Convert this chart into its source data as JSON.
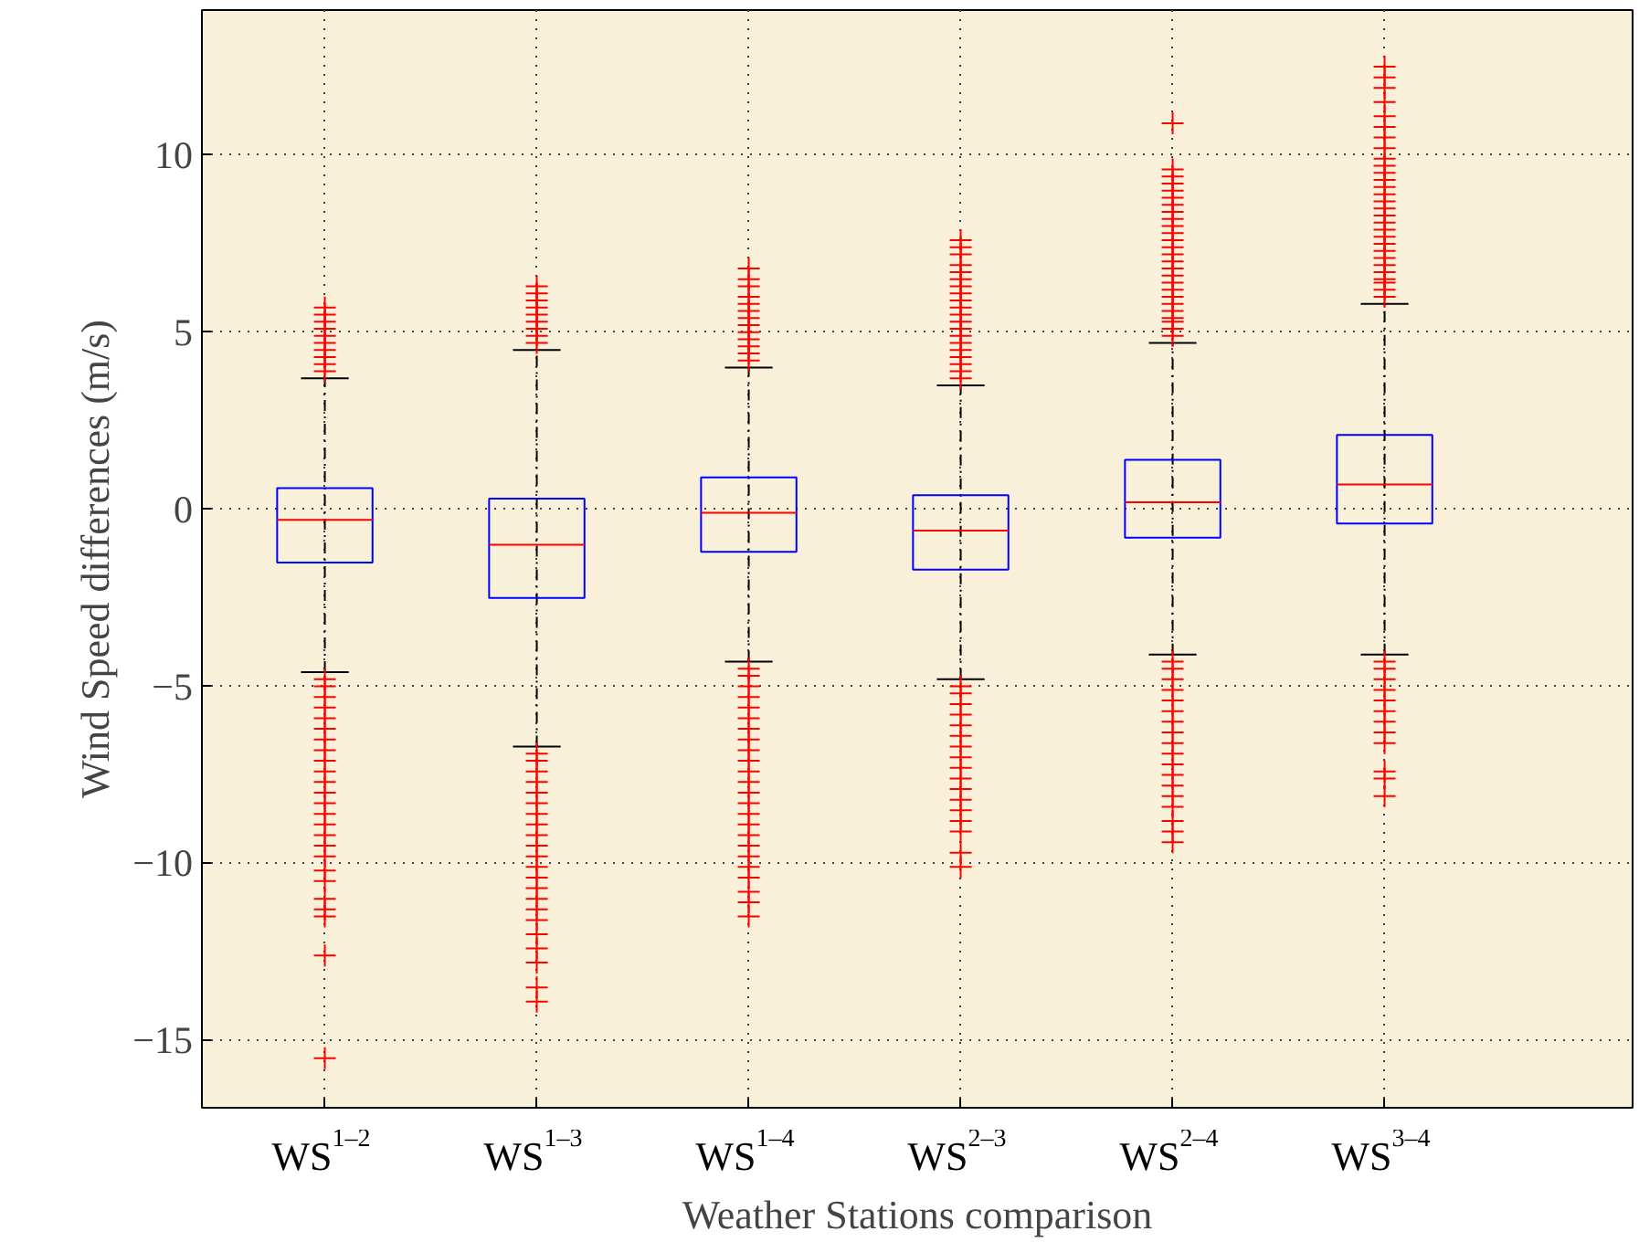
{
  "chart_data": {
    "type": "box",
    "xlabel": "Weather Stations comparison",
    "ylabel": "Wind Speed differences (m/s)",
    "categories": [
      "WS$^{1–2}$",
      "WS$^{1–3}$",
      "WS$^{1–4}$",
      "WS$^{2–3}$",
      "WS$^{2–4}$",
      "WS$^{3–4}$"
    ],
    "ylim": [
      -16.9,
      14.1
    ],
    "yticks": [
      {
        "value": -15,
        "label": "−15"
      },
      {
        "value": -10,
        "label": "−10"
      },
      {
        "value": -5,
        "label": "−5"
      },
      0,
      5,
      10
    ],
    "grid": true,
    "marker": "cross",
    "series": [
      {
        "color": "#0000ff",
        "boxes": [
          {
            "low": -4.6,
            "q1": -1.5,
            "median": -0.3,
            "q3": 0.6,
            "high": 3.7,
            "outliers": [
              3.9,
              4.1,
              4.3,
              4.5,
              4.7,
              4.9,
              5.1,
              5.3,
              5.5,
              5.7,
              -4.8,
              -5.0,
              -5.3,
              -5.6,
              -5.9,
              -6.2,
              -6.5,
              -6.8,
              -7.1,
              -7.4,
              -7.7,
              -8.0,
              -8.3,
              -8.6,
              -8.9,
              -9.2,
              -9.5,
              -9.8,
              -10.2,
              -10.5,
              -11.0,
              -11.3,
              -11.5,
              -12.6,
              -15.5
            ]
          },
          {
            "low": -6.7,
            "q1": -2.5,
            "median": -1.0,
            "q3": 0.3,
            "high": 4.5,
            "outliers": [
              4.7,
              4.9,
              5.1,
              5.3,
              5.5,
              5.7,
              5.9,
              6.1,
              6.3,
              -6.9,
              -7.1,
              -7.4,
              -7.7,
              -8.0,
              -8.3,
              -8.6,
              -8.9,
              -9.2,
              -9.5,
              -9.8,
              -10.1,
              -10.4,
              -10.7,
              -11.0,
              -11.3,
              -11.6,
              -12.0,
              -12.4,
              -12.8,
              -13.5,
              -13.9
            ]
          },
          {
            "low": -4.3,
            "q1": -1.2,
            "median": -0.1,
            "q3": 0.9,
            "high": 4.0,
            "outliers": [
              4.2,
              4.4,
              4.6,
              4.8,
              5.0,
              5.2,
              5.4,
              5.6,
              5.8,
              6.0,
              6.3,
              6.5,
              6.8,
              -4.5,
              -4.7,
              -5.0,
              -5.3,
              -5.6,
              -5.9,
              -6.2,
              -6.5,
              -6.8,
              -7.1,
              -7.4,
              -7.7,
              -8.0,
              -8.3,
              -8.6,
              -8.9,
              -9.2,
              -9.5,
              -9.8,
              -10.1,
              -10.4,
              -10.8,
              -11.1,
              -11.5
            ]
          },
          {
            "low": -4.8,
            "q1": -1.7,
            "median": -0.6,
            "q3": 0.4,
            "high": 3.5,
            "outliers": [
              3.7,
              3.9,
              4.1,
              4.3,
              4.5,
              4.7,
              4.9,
              5.1,
              5.3,
              5.5,
              5.7,
              5.9,
              6.1,
              6.3,
              6.5,
              6.7,
              6.9,
              7.2,
              7.4,
              7.6,
              -5.0,
              -5.2,
              -5.5,
              -5.8,
              -6.1,
              -6.4,
              -6.7,
              -7.0,
              -7.3,
              -7.6,
              -7.9,
              -8.2,
              -8.5,
              -8.8,
              -9.1,
              -9.7,
              -10.1
            ]
          },
          {
            "low": -4.1,
            "q1": -0.8,
            "median": 0.2,
            "q3": 1.4,
            "high": 4.7,
            "outliers": [
              4.9,
              5.1,
              5.3,
              5.4,
              5.6,
              5.8,
              6.0,
              6.2,
              6.4,
              6.6,
              6.8,
              7.0,
              7.2,
              7.4,
              7.6,
              7.8,
              8.0,
              8.2,
              8.4,
              8.6,
              8.8,
              9.0,
              9.2,
              9.4,
              9.6,
              10.9,
              -4.3,
              -4.5,
              -4.8,
              -5.1,
              -5.4,
              -5.7,
              -6.0,
              -6.3,
              -6.6,
              -6.9,
              -7.2,
              -7.5,
              -7.8,
              -8.1,
              -8.4,
              -8.8,
              -9.1,
              -9.4
            ]
          },
          {
            "low": -4.1,
            "q1": -0.4,
            "median": 0.7,
            "q3": 2.1,
            "high": 5.8,
            "outliers": [
              6.0,
              6.2,
              6.4,
              6.5,
              6.7,
              6.9,
              7.1,
              7.3,
              7.5,
              7.7,
              7.9,
              8.1,
              8.3,
              8.5,
              8.7,
              8.9,
              9.1,
              9.3,
              9.5,
              9.7,
              9.9,
              10.2,
              10.5,
              10.8,
              11.1,
              11.5,
              11.9,
              12.2,
              12.5,
              -4.3,
              -4.5,
              -4.8,
              -5.1,
              -5.4,
              -5.7,
              -6.0,
              -6.3,
              -6.6,
              -7.4,
              -7.6,
              -8.1
            ]
          }
        ]
      }
    ]
  }
}
